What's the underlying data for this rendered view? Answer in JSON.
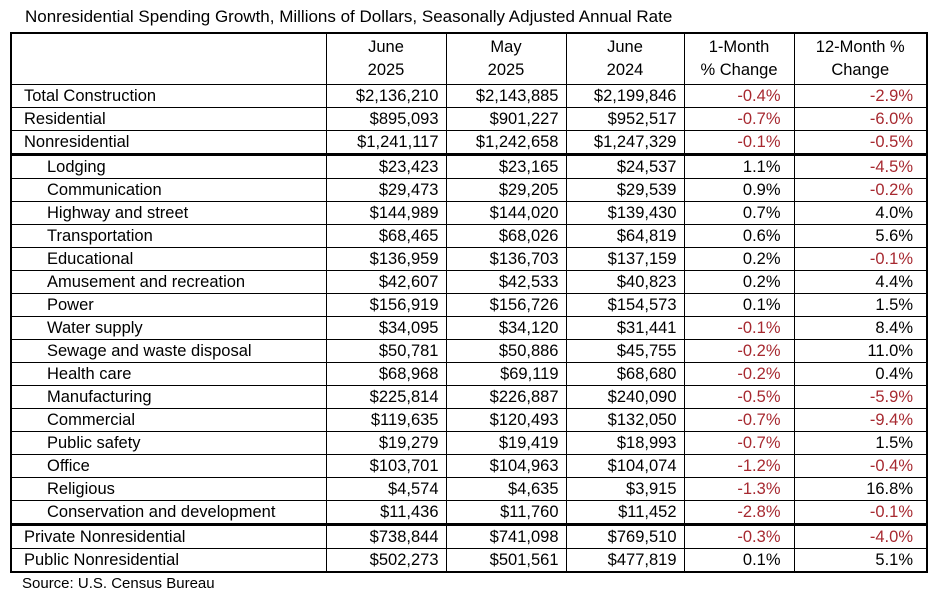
{
  "colors": {
    "negative_change": "#a72930",
    "text": "#000000",
    "border": "#000000"
  },
  "chart_data": {
    "type": "table",
    "title": "Nonresidential Spending Growth, Millions of Dollars, Seasonally Adjusted Annual Rate",
    "source": "Source: U.S. Census Bureau",
    "columns": [
      {
        "line1": "",
        "line2": ""
      },
      {
        "line1": "June",
        "line2": "2025"
      },
      {
        "line1": "May",
        "line2": "2025"
      },
      {
        "line1": "June",
        "line2": "2024"
      },
      {
        "line1": "1-Month",
        "line2": "% Change"
      },
      {
        "line1": "12-Month %",
        "line2": "Change"
      }
    ],
    "rows": [
      {
        "label": "Total Construction",
        "indent": false,
        "thick_border_below": false,
        "values": [
          "$2,136,210",
          "$2,143,885",
          "$2,199,846",
          "-0.4%",
          "-2.9%"
        ]
      },
      {
        "label": "Residential",
        "indent": false,
        "thick_border_below": false,
        "values": [
          "$895,093",
          "$901,227",
          "$952,517",
          "-0.7%",
          "-6.0%"
        ]
      },
      {
        "label": "Nonresidential",
        "indent": false,
        "thick_border_below": true,
        "values": [
          "$1,241,117",
          "$1,242,658",
          "$1,247,329",
          "-0.1%",
          "-0.5%"
        ]
      },
      {
        "label": "Lodging",
        "indent": true,
        "thick_border_below": false,
        "values": [
          "$23,423",
          "$23,165",
          "$24,537",
          "1.1%",
          "-4.5%"
        ]
      },
      {
        "label": "Communication",
        "indent": true,
        "thick_border_below": false,
        "values": [
          "$29,473",
          "$29,205",
          "$29,539",
          "0.9%",
          "-0.2%"
        ]
      },
      {
        "label": "Highway and street",
        "indent": true,
        "thick_border_below": false,
        "values": [
          "$144,989",
          "$144,020",
          "$139,430",
          "0.7%",
          "4.0%"
        ]
      },
      {
        "label": "Transportation",
        "indent": true,
        "thick_border_below": false,
        "values": [
          "$68,465",
          "$68,026",
          "$64,819",
          "0.6%",
          "5.6%"
        ]
      },
      {
        "label": "Educational",
        "indent": true,
        "thick_border_below": false,
        "values": [
          "$136,959",
          "$136,703",
          "$137,159",
          "0.2%",
          "-0.1%"
        ]
      },
      {
        "label": "Amusement and recreation",
        "indent": true,
        "thick_border_below": false,
        "values": [
          "$42,607",
          "$42,533",
          "$40,823",
          "0.2%",
          "4.4%"
        ]
      },
      {
        "label": "Power",
        "indent": true,
        "thick_border_below": false,
        "values": [
          "$156,919",
          "$156,726",
          "$154,573",
          "0.1%",
          "1.5%"
        ]
      },
      {
        "label": "Water supply",
        "indent": true,
        "thick_border_below": false,
        "values": [
          "$34,095",
          "$34,120",
          "$31,441",
          "-0.1%",
          "8.4%"
        ]
      },
      {
        "label": "Sewage and waste disposal",
        "indent": true,
        "thick_border_below": false,
        "values": [
          "$50,781",
          "$50,886",
          "$45,755",
          "-0.2%",
          "11.0%"
        ]
      },
      {
        "label": "Health care",
        "indent": true,
        "thick_border_below": false,
        "values": [
          "$68,968",
          "$69,119",
          "$68,680",
          "-0.2%",
          "0.4%"
        ]
      },
      {
        "label": "Manufacturing",
        "indent": true,
        "thick_border_below": false,
        "values": [
          "$225,814",
          "$226,887",
          "$240,090",
          "-0.5%",
          "-5.9%"
        ]
      },
      {
        "label": "Commercial",
        "indent": true,
        "thick_border_below": false,
        "values": [
          "$119,635",
          "$120,493",
          "$132,050",
          "-0.7%",
          "-9.4%"
        ]
      },
      {
        "label": "Public safety",
        "indent": true,
        "thick_border_below": false,
        "values": [
          "$19,279",
          "$19,419",
          "$18,993",
          "-0.7%",
          "1.5%"
        ]
      },
      {
        "label": "Office",
        "indent": true,
        "thick_border_below": false,
        "values": [
          "$103,701",
          "$104,963",
          "$104,074",
          "-1.2%",
          "-0.4%"
        ]
      },
      {
        "label": "Religious",
        "indent": true,
        "thick_border_below": false,
        "values": [
          "$4,574",
          "$4,635",
          "$3,915",
          "-1.3%",
          "16.8%"
        ]
      },
      {
        "label": "Conservation and development",
        "indent": true,
        "thick_border_below": true,
        "values": [
          "$11,436",
          "$11,760",
          "$11,452",
          "-2.8%",
          "-0.1%"
        ]
      },
      {
        "label": "Private Nonresidential",
        "indent": false,
        "thick_border_below": false,
        "values": [
          "$738,844",
          "$741,098",
          "$769,510",
          "-0.3%",
          "-4.0%"
        ]
      },
      {
        "label": "Public Nonresidential",
        "indent": false,
        "thick_border_below": false,
        "values": [
          "$502,273",
          "$501,561",
          "$477,819",
          "0.1%",
          "5.1%"
        ]
      }
    ]
  }
}
